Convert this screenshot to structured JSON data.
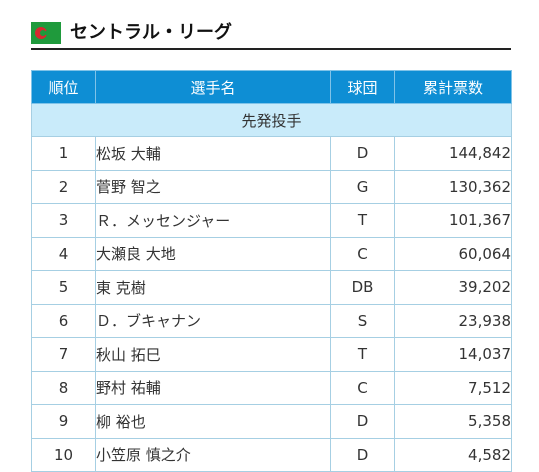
{
  "header": {
    "icon": "central-league-logo-icon",
    "title": "セントラル・リーグ"
  },
  "table": {
    "columns": {
      "rank": "順位",
      "player": "選手名",
      "team": "球団",
      "votes": "累計票数"
    },
    "section": "先発投手",
    "rows": [
      {
        "rank": "1",
        "player": "松坂 大輔",
        "team": "D",
        "votes": "144,842"
      },
      {
        "rank": "2",
        "player": "菅野 智之",
        "team": "G",
        "votes": "130,362"
      },
      {
        "rank": "3",
        "player": "Ｒ．メッセンジャー",
        "team": "T",
        "votes": "101,367"
      },
      {
        "rank": "4",
        "player": "大瀬良 大地",
        "team": "C",
        "votes": "60,064"
      },
      {
        "rank": "5",
        "player": "東 克樹",
        "team": "DB",
        "votes": "39,202"
      },
      {
        "rank": "6",
        "player": "Ｄ．ブキャナン",
        "team": "S",
        "votes": "23,938"
      },
      {
        "rank": "7",
        "player": "秋山 拓巳",
        "team": "T",
        "votes": "14,037"
      },
      {
        "rank": "8",
        "player": "野村 祐輔",
        "team": "C",
        "votes": "7,512"
      },
      {
        "rank": "9",
        "player": "柳 裕也",
        "team": "D",
        "votes": "5,358"
      },
      {
        "rank": "10",
        "player": "小笠原 慎之介",
        "team": "D",
        "votes": "4,582"
      }
    ]
  },
  "colors": {
    "header_bg": "#0e8ed4",
    "section_bg": "#c9ebfa",
    "border": "#a6cfe3",
    "logo_green": "#1f9a3c",
    "logo_red": "#d7282f"
  }
}
